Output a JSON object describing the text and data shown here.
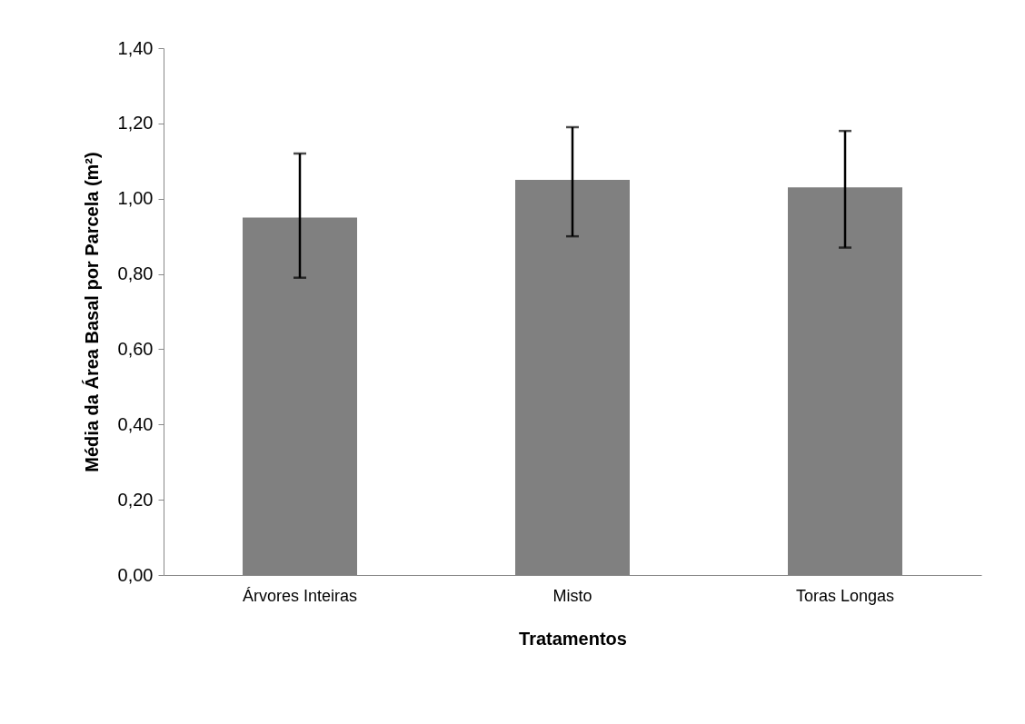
{
  "chart_data": {
    "type": "bar",
    "xlabel": "Tratamentos",
    "ylabel": "Média da Área Basal por Parcela (m²)",
    "categories": [
      "Árvores Inteiras",
      "Misto",
      "Toras Longas"
    ],
    "values": [
      0.95,
      1.05,
      1.03
    ],
    "color": "#808080",
    "errors": [
      [
        0.79,
        1.12
      ],
      [
        0.9,
        1.19
      ],
      [
        0.87,
        1.18
      ]
    ],
    "ylim": [
      0,
      1.4
    ],
    "yticks": [
      {
        "value": 0,
        "label": "0,00"
      },
      {
        "value": 0.2,
        "label": "0,20"
      },
      {
        "value": 0.4,
        "label": "0,40"
      },
      {
        "value": 0.6,
        "label": "0,60"
      },
      {
        "value": 0.8,
        "label": "0,80"
      },
      {
        "value": 1.0,
        "label": "1,00"
      },
      {
        "value": 1.2,
        "label": "1,20"
      },
      {
        "value": 1.4,
        "label": "1,40"
      }
    ],
    "grid": false
  }
}
